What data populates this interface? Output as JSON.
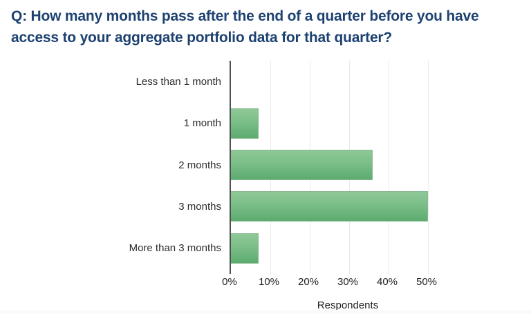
{
  "title": {
    "line1": "Q: How many months pass after the end of a quarter before you have",
    "line2": "access to your aggregate portfolio data for that quarter?"
  },
  "chart_data": {
    "type": "bar",
    "orientation": "horizontal",
    "title": "Q: How many months pass after the end of a quarter before you have access to your aggregate portfolio data for that quarter?",
    "categories": [
      "Less than 1 month",
      "1 month",
      "2 months",
      "3 months",
      "More than 3 months"
    ],
    "values": [
      0,
      7,
      36,
      50,
      7
    ],
    "unit": "%",
    "xlabel": "Respondents",
    "x_ticks": [
      "0%",
      "10%",
      "20%",
      "30%",
      "40%",
      "50%"
    ],
    "x_tick_values": [
      0,
      10,
      20,
      30,
      40,
      50
    ],
    "xlim": [
      0,
      60
    ],
    "grid": true,
    "legend": false,
    "colors": {
      "bar_gradient_top": "#8fc897",
      "bar_gradient_bottom": "#5cab6f",
      "bar_border": "#87ba90",
      "axis_line": "#4f4f4f",
      "gridline": "#e9e9e9",
      "title_text": "#1d4271",
      "label_text": "#2b2b2b"
    }
  }
}
